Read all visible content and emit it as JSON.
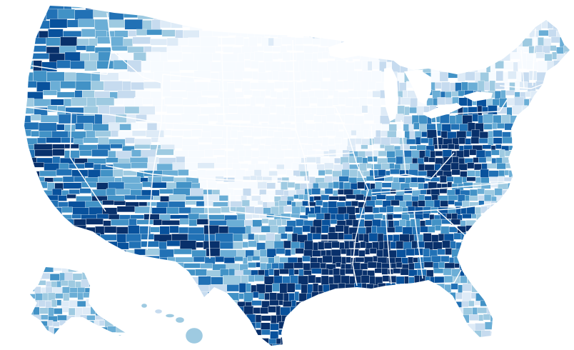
{
  "map": {
    "kind": "choropleth",
    "region": "United States",
    "unit": "county",
    "borders": "white",
    "background": "#ffffff",
    "color_scale": [
      "#f7fbff",
      "#deebf7",
      "#c6dbef",
      "#9ecae1",
      "#6baed6",
      "#4292c6",
      "#2171b5",
      "#08519c",
      "#08306b"
    ]
  }
}
